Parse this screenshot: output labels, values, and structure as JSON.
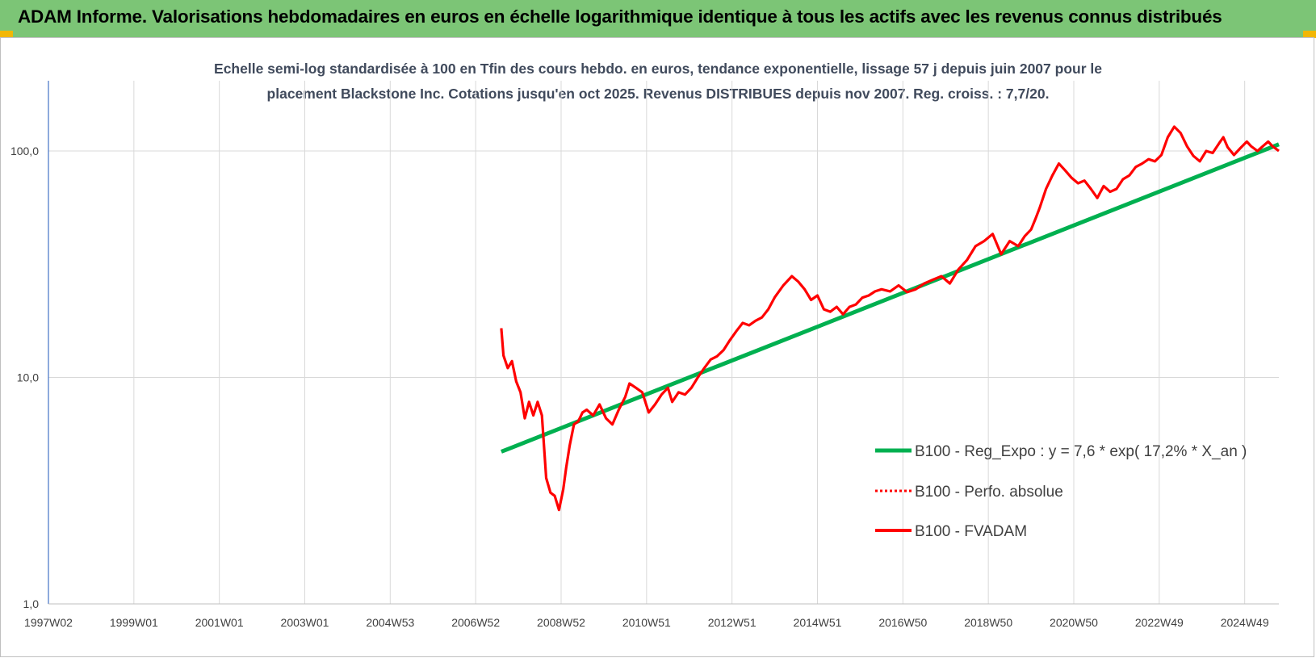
{
  "header": {
    "title": "ADAM Informe. Valorisations hebdomadaires en euros en échelle logarithmique identique à tous les actifs avec les revenus connus distribués"
  },
  "colors": {
    "header_bg": "#7cc576",
    "regression": "#00b050",
    "fvadam": "#ff0000",
    "perfo": "#ff0000",
    "grid": "#d9d9d9",
    "y_axis": "#4472c4"
  },
  "chart_data": {
    "type": "line",
    "title_line1": "Echelle semi-log standardisée à 100 en Tfin des cours hebdo. en euros, tendance exponentielle, lissage 57 j depuis juin 2007 pour le",
    "title_line2": "placement Blackstone Inc. Cotations jusqu'en oct 2025.  Revenus DISTRIBUES depuis nov 2007. Reg. croiss. : 7,7/20.",
    "y_scale": "log",
    "ylim": [
      1,
      200
    ],
    "y_ticks": [
      "1,0",
      "10,0",
      "100,0"
    ],
    "y_tick_values": [
      1,
      10,
      100
    ],
    "xlim": [
      1997.0,
      2025.8
    ],
    "x_ticks": [
      "1997W02",
      "1999W01",
      "2001W01",
      "2003W01",
      "2004W53",
      "2006W52",
      "2008W52",
      "2010W51",
      "2012W51",
      "2014W51",
      "2016W50",
      "2018W50",
      "2020W50",
      "2022W49",
      "2024W49"
    ],
    "x_tick_values": [
      1997.0,
      1999.0,
      2001.0,
      2003.0,
      2005.0,
      2007.0,
      2009.0,
      2011.0,
      2013.0,
      2015.0,
      2017.0,
      2019.0,
      2021.0,
      2023.0,
      2025.0
    ],
    "grid": true,
    "legend_position": "right",
    "legend": [
      {
        "label": "B100 - Reg_Expo : y = 7,6 * exp( 17,2% *  X_an )",
        "style": "solid-thick",
        "color": "#00b050"
      },
      {
        "label": "B100 - Perfo. absolue",
        "style": "dotted",
        "color": "#ff0000"
      },
      {
        "label": "B100 - FVADAM",
        "style": "solid",
        "color": "#ff0000"
      }
    ],
    "series": [
      {
        "name": "B100 - Reg_Expo : y = 7,6 * exp( 17,2% *  X_an )",
        "x": [
          2007.6,
          2025.8
        ],
        "y": [
          4.7,
          107
        ]
      },
      {
        "name": "B100 - FVADAM",
        "x": [
          2007.6,
          2007.65,
          2007.75,
          2007.85,
          2007.95,
          2008.05,
          2008.15,
          2008.25,
          2008.35,
          2008.45,
          2008.55,
          2008.65,
          2008.75,
          2008.85,
          2008.95,
          2009.05,
          2009.12,
          2009.2,
          2009.3,
          2009.4,
          2009.5,
          2009.6,
          2009.75,
          2009.9,
          2010.05,
          2010.2,
          2010.35,
          2010.5,
          2010.6,
          2010.75,
          2010.9,
          2011.05,
          2011.2,
          2011.35,
          2011.5,
          2011.6,
          2011.75,
          2011.9,
          2012.05,
          2012.2,
          2012.35,
          2012.5,
          2012.65,
          2012.8,
          2012.95,
          2013.1,
          2013.25,
          2013.4,
          2013.55,
          2013.7,
          2013.85,
          2014.0,
          2014.2,
          2014.4,
          2014.55,
          2014.7,
          2014.85,
          2015.0,
          2015.15,
          2015.3,
          2015.45,
          2015.6,
          2015.75,
          2015.9,
          2016.05,
          2016.2,
          2016.35,
          2016.5,
          2016.7,
          2016.9,
          2017.1,
          2017.3,
          2017.5,
          2017.7,
          2017.9,
          2018.1,
          2018.3,
          2018.5,
          2018.7,
          2018.9,
          2019.1,
          2019.3,
          2019.5,
          2019.7,
          2019.85,
          2020.0,
          2020.1,
          2020.2,
          2020.35,
          2020.5,
          2020.65,
          2020.8,
          2020.95,
          2021.1,
          2021.25,
          2021.4,
          2021.55,
          2021.7,
          2021.85,
          2022.0,
          2022.15,
          2022.3,
          2022.45,
          2022.6,
          2022.75,
          2022.9,
          2023.05,
          2023.2,
          2023.35,
          2023.5,
          2023.65,
          2023.8,
          2023.95,
          2024.1,
          2024.25,
          2024.4,
          2024.5,
          2024.6,
          2024.75,
          2024.9,
          2025.05,
          2025.15,
          2025.3,
          2025.45,
          2025.55,
          2025.65,
          2025.8
        ],
        "y": [
          16.5,
          12.5,
          11.0,
          11.8,
          9.6,
          8.6,
          6.6,
          7.8,
          6.8,
          7.8,
          6.8,
          3.6,
          3.1,
          3.0,
          2.6,
          3.2,
          4.0,
          5.0,
          6.2,
          6.4,
          7.0,
          7.2,
          6.8,
          7.6,
          6.6,
          6.2,
          7.2,
          8.2,
          9.4,
          9.0,
          8.6,
          7.0,
          7.6,
          8.4,
          9.0,
          7.8,
          8.6,
          8.4,
          9.0,
          10.0,
          11.0,
          12.0,
          12.4,
          13.2,
          14.6,
          16.0,
          17.4,
          17.0,
          17.8,
          18.4,
          20.0,
          22.6,
          25.5,
          28.0,
          26.5,
          24.5,
          22.0,
          23.0,
          20.0,
          19.5,
          20.5,
          19.0,
          20.5,
          21.0,
          22.5,
          23.0,
          24.0,
          24.5,
          24.0,
          25.5,
          23.8,
          24.5,
          26.0,
          27.0,
          28.0,
          26.0,
          30.0,
          33.0,
          38.0,
          40.0,
          43.0,
          35.0,
          40.0,
          38.0,
          42.0,
          45.0,
          50.0,
          56.0,
          68.0,
          78.0,
          88.0,
          82.0,
          76.0,
          72.0,
          74.0,
          68.0,
          62.0,
          70.0,
          66.0,
          68.0,
          75.0,
          78.0,
          85.0,
          88.0,
          92.0,
          90.0,
          96.0,
          115.0,
          128.0,
          120.0,
          105.0,
          95.0,
          90.0,
          100.0,
          98.0,
          108.0,
          115.0,
          104.0,
          96.0,
          103.0,
          110.0,
          105.0,
          100.0,
          106.0,
          110.0,
          105.0,
          100.0
        ]
      }
    ]
  }
}
